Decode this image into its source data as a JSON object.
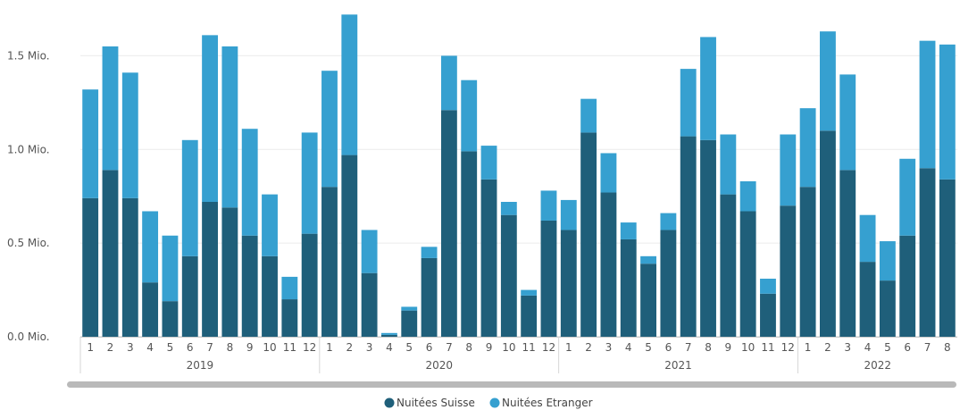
{
  "chart_data": {
    "type": "bar",
    "stacked": true,
    "yTicks": [
      {
        "value": 0,
        "label": "0.0 Mio."
      },
      {
        "value": 0.5,
        "label": "0.5 Mio."
      },
      {
        "value": 1.0,
        "label": "1.0 Mio."
      },
      {
        "value": 1.5,
        "label": "1.5 Mio."
      }
    ],
    "ylim": [
      0,
      1.75
    ],
    "grid": true,
    "legend_position": "bottom-center",
    "years": [
      {
        "label": "2019",
        "months": [
          "1",
          "2",
          "3",
          "4",
          "5",
          "6",
          "7",
          "8",
          "9",
          "10",
          "11",
          "12"
        ]
      },
      {
        "label": "2020",
        "months": [
          "1",
          "2",
          "3",
          "4",
          "5",
          "6",
          "7",
          "8",
          "9",
          "10",
          "11",
          "12"
        ]
      },
      {
        "label": "2021",
        "months": [
          "1",
          "2",
          "3",
          "4",
          "5",
          "6",
          "7",
          "8",
          "9",
          "10",
          "11",
          "12"
        ]
      },
      {
        "label": "2022",
        "months": [
          "1",
          "2",
          "3",
          "4",
          "5",
          "6",
          "7",
          "8"
        ]
      }
    ],
    "series": [
      {
        "name": "Nuitées Suisse",
        "color": "#1f5f7a",
        "values": [
          0.74,
          0.89,
          0.74,
          0.29,
          0.19,
          0.43,
          0.72,
          0.69,
          0.54,
          0.43,
          0.2,
          0.55,
          0.8,
          0.97,
          0.34,
          0.01,
          0.14,
          0.42,
          1.21,
          0.99,
          0.84,
          0.65,
          0.22,
          0.62,
          0.57,
          1.09,
          0.77,
          0.52,
          0.39,
          0.57,
          1.07,
          1.05,
          0.76,
          0.67,
          0.23,
          0.7,
          0.8,
          1.1,
          0.89,
          0.4,
          0.3,
          0.54,
          0.9,
          0.84
        ]
      },
      {
        "name": "Nuitées Etranger",
        "color": "#36a0d0",
        "values": [
          0.58,
          0.66,
          0.67,
          0.38,
          0.35,
          0.62,
          0.89,
          0.86,
          0.57,
          0.33,
          0.12,
          0.54,
          0.62,
          0.75,
          0.23,
          0.01,
          0.02,
          0.06,
          0.29,
          0.38,
          0.18,
          0.07,
          0.03,
          0.16,
          0.16,
          0.18,
          0.21,
          0.09,
          0.04,
          0.09,
          0.36,
          0.55,
          0.32,
          0.16,
          0.08,
          0.38,
          0.42,
          0.53,
          0.51,
          0.25,
          0.21,
          0.41,
          0.68,
          0.72
        ]
      }
    ]
  }
}
